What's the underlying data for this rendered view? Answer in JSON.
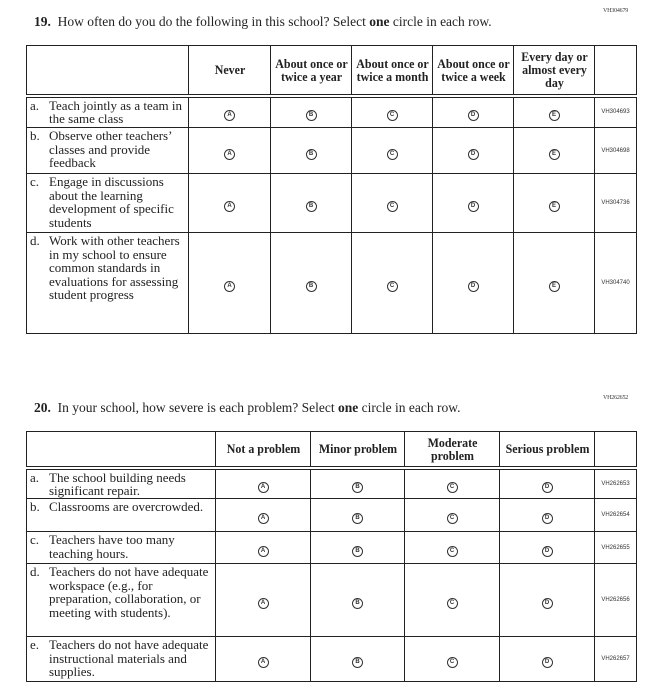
{
  "q19": {
    "code": "VH304679",
    "number": "19.",
    "prompt_before": "How often do you do the following in this school? Select",
    "prompt_bold": "one",
    "prompt_after": "circle in each row.",
    "columns": [
      "Never",
      "About once or twice a year",
      "About once or twice a month",
      "About once or twice a week",
      "Every day or almost every day"
    ],
    "option_letters": [
      "A",
      "B",
      "C",
      "D",
      "E"
    ],
    "rows": [
      {
        "label": "a.",
        "text": "Teach jointly as a team in the same class",
        "code": "VH304693"
      },
      {
        "label": "b.",
        "text": "Observe other teachers’ classes and provide feedback",
        "code": "VH304698"
      },
      {
        "label": "c.",
        "text": "Engage in discussions about the learning development of specific students",
        "code": "VH304736"
      },
      {
        "label": "d.",
        "text": "Work with other teachers in my school to ensure common standards in evaluations for assessing student progress",
        "code": "VH304740"
      }
    ]
  },
  "q20": {
    "code": "VH262652",
    "number": "20.",
    "prompt_before": "In your school, how severe is each problem? Select",
    "prompt_bold": "one",
    "prompt_after": "circle in each row.",
    "columns": [
      "Not a problem",
      "Minor problem",
      "Moderate problem",
      "Serious problem"
    ],
    "option_letters": [
      "A",
      "B",
      "C",
      "D"
    ],
    "rows": [
      {
        "label": "a.",
        "text": "The school building needs significant repair.",
        "code": "VH262653"
      },
      {
        "label": "b.",
        "text": "Classrooms are overcrowded.",
        "code": "VH262654"
      },
      {
        "label": "c.",
        "text": "Teachers have too many teaching hours.",
        "code": "VH262655"
      },
      {
        "label": "d.",
        "text": "Teachers do not have adequate workspace (e.g., for preparation, collaboration, or meeting with students).",
        "code": "VH262656"
      },
      {
        "label": "e.",
        "text": "Teachers do not have adequate instructional materials and supplies.",
        "code": "VH262657"
      }
    ]
  }
}
